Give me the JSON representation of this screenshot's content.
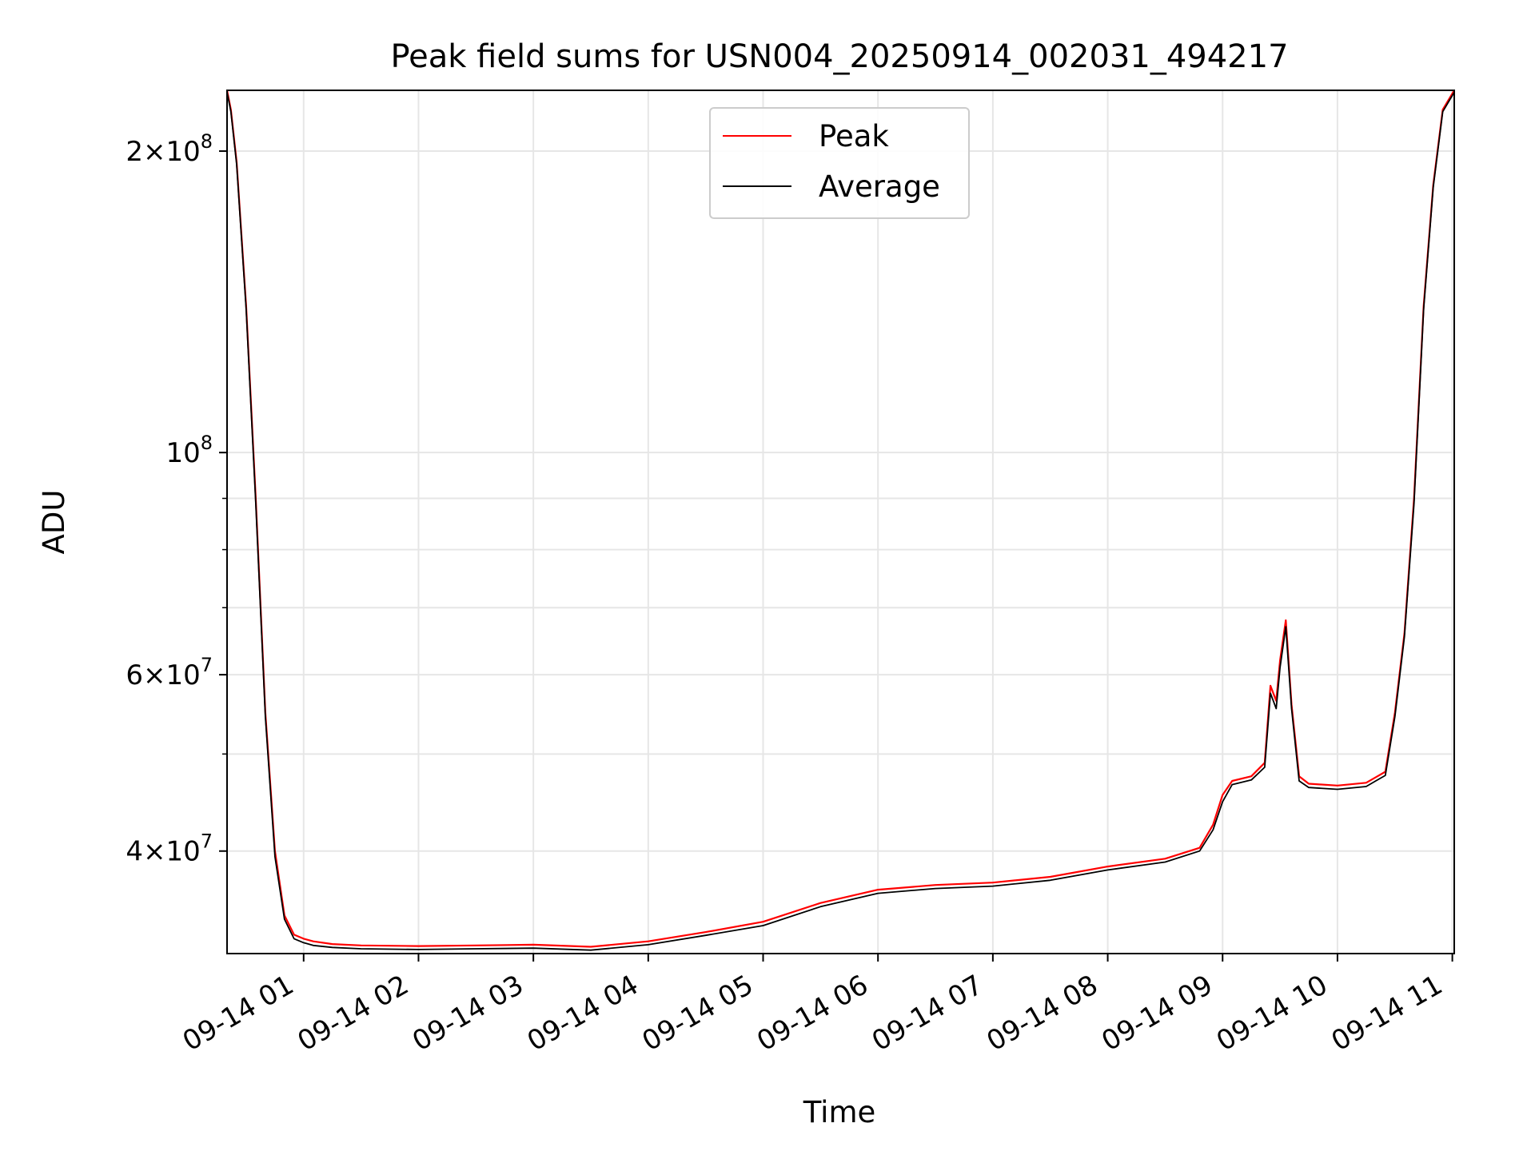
{
  "chart_data": {
    "type": "line",
    "title": "Peak field sums for USN004_20250914_002031_494217",
    "xlabel": "Time",
    "ylabel": "ADU",
    "x_scale": "time",
    "y_scale": "log",
    "xlim": [
      "2025-09-14 00:20",
      "2025-09-14 11:01"
    ],
    "ylim": [
      31600000,
      230000000
    ],
    "grid": true,
    "legend_position": "upper center",
    "x_ticks": [
      "09-14 01",
      "09-14 02",
      "09-14 03",
      "09-14 04",
      "09-14 05",
      "09-14 06",
      "09-14 07",
      "09-14 08",
      "09-14 09",
      "09-14 10",
      "09-14 11"
    ],
    "x_tick_values": [
      "2025-09-14 01:00",
      "2025-09-14 02:00",
      "2025-09-14 03:00",
      "2025-09-14 04:00",
      "2025-09-14 05:00",
      "2025-09-14 06:00",
      "2025-09-14 07:00",
      "2025-09-14 08:00",
      "2025-09-14 09:00",
      "2025-09-14 10:00",
      "2025-09-14 11:00"
    ],
    "y_major_ticks": [
      {
        "value": 200000000,
        "mantissa": "2",
        "exponent": "8"
      },
      {
        "value": 100000000,
        "mantissa": "",
        "exponent": "8"
      },
      {
        "value": 60000000,
        "mantissa": "6",
        "exponent": "7"
      },
      {
        "value": 40000000,
        "mantissa": "4",
        "exponent": "7"
      }
    ],
    "y_minor_ticks": [
      90000000,
      80000000,
      70000000,
      50000000
    ],
    "series": [
      {
        "name": "Peak",
        "color": "#ff0000",
        "x": [
          "2025-09-14 00:20",
          "2025-09-14 00:22",
          "2025-09-14 00:25",
          "2025-09-14 00:30",
          "2025-09-14 00:35",
          "2025-09-14 00:40",
          "2025-09-14 00:45",
          "2025-09-14 00:50",
          "2025-09-14 00:55",
          "2025-09-14 01:00",
          "2025-09-14 01:05",
          "2025-09-14 01:15",
          "2025-09-14 01:30",
          "2025-09-14 02:00",
          "2025-09-14 02:30",
          "2025-09-14 03:00",
          "2025-09-14 03:30",
          "2025-09-14 04:00",
          "2025-09-14 04:30",
          "2025-09-14 05:00",
          "2025-09-14 05:30",
          "2025-09-14 06:00",
          "2025-09-14 06:30",
          "2025-09-14 07:00",
          "2025-09-14 07:30",
          "2025-09-14 08:00",
          "2025-09-14 08:30",
          "2025-09-14 08:48",
          "2025-09-14 08:55",
          "2025-09-14 09:00",
          "2025-09-14 09:05",
          "2025-09-14 09:15",
          "2025-09-14 09:22",
          "2025-09-14 09:25",
          "2025-09-14 09:28",
          "2025-09-14 09:30",
          "2025-09-14 09:33",
          "2025-09-14 09:36",
          "2025-09-14 09:40",
          "2025-09-14 09:45",
          "2025-09-14 10:00",
          "2025-09-14 10:15",
          "2025-09-14 10:20",
          "2025-09-14 10:25",
          "2025-09-14 10:30",
          "2025-09-14 10:35",
          "2025-09-14 10:40",
          "2025-09-14 10:45",
          "2025-09-14 10:50",
          "2025-09-14 10:55",
          "2025-09-14 11:01"
        ],
        "values": [
          230000000,
          220000000,
          195000000,
          140000000,
          90000000,
          55000000,
          40000000,
          34500000,
          33000000,
          32700000,
          32500000,
          32300000,
          32200000,
          32150000,
          32200000,
          32250000,
          32100000,
          32500000,
          33200000,
          34000000,
          35500000,
          36600000,
          37000000,
          37200000,
          37700000,
          38600000,
          39300000,
          40300000,
          42500000,
          45500000,
          47000000,
          47500000,
          49000000,
          58500000,
          56500000,
          62000000,
          68000000,
          56000000,
          47500000,
          46700000,
          46500000,
          46800000,
          47400000,
          48000000,
          55000000,
          66000000,
          90000000,
          140000000,
          185000000,
          220000000,
          230000000
        ]
      },
      {
        "name": "Average",
        "color": "#000000",
        "x": [
          "2025-09-14 00:20",
          "2025-09-14 00:22",
          "2025-09-14 00:25",
          "2025-09-14 00:30",
          "2025-09-14 00:35",
          "2025-09-14 00:40",
          "2025-09-14 00:45",
          "2025-09-14 00:50",
          "2025-09-14 00:55",
          "2025-09-14 01:00",
          "2025-09-14 01:05",
          "2025-09-14 01:15",
          "2025-09-14 01:30",
          "2025-09-14 02:00",
          "2025-09-14 02:30",
          "2025-09-14 03:00",
          "2025-09-14 03:30",
          "2025-09-14 04:00",
          "2025-09-14 04:30",
          "2025-09-14 05:00",
          "2025-09-14 05:30",
          "2025-09-14 06:00",
          "2025-09-14 06:30",
          "2025-09-14 07:00",
          "2025-09-14 07:30",
          "2025-09-14 08:00",
          "2025-09-14 08:30",
          "2025-09-14 08:48",
          "2025-09-14 08:55",
          "2025-09-14 09:00",
          "2025-09-14 09:05",
          "2025-09-14 09:15",
          "2025-09-14 09:22",
          "2025-09-14 09:25",
          "2025-09-14 09:28",
          "2025-09-14 09:30",
          "2025-09-14 09:33",
          "2025-09-14 09:36",
          "2025-09-14 09:40",
          "2025-09-14 09:45",
          "2025-09-14 10:00",
          "2025-09-14 10:15",
          "2025-09-14 10:20",
          "2025-09-14 10:25",
          "2025-09-14 10:30",
          "2025-09-14 10:35",
          "2025-09-14 10:40",
          "2025-09-14 10:45",
          "2025-09-14 10:50",
          "2025-09-14 10:55",
          "2025-09-14 11:01"
        ],
        "values": [
          229000000,
          219000000,
          194000000,
          139000000,
          89000000,
          54500000,
          39500000,
          34200000,
          32700000,
          32400000,
          32200000,
          32050000,
          31950000,
          31900000,
          31950000,
          32000000,
          31850000,
          32250000,
          32950000,
          33700000,
          35200000,
          36300000,
          36700000,
          36900000,
          37400000,
          38300000,
          39000000,
          40000000,
          42000000,
          44800000,
          46600000,
          47100000,
          48500000,
          57500000,
          55500000,
          61000000,
          67000000,
          55500000,
          47000000,
          46300000,
          46100000,
          46400000,
          47000000,
          47600000,
          54500000,
          65500000,
          89000000,
          139000000,
          184000000,
          219000000,
          229000000
        ]
      }
    ]
  }
}
